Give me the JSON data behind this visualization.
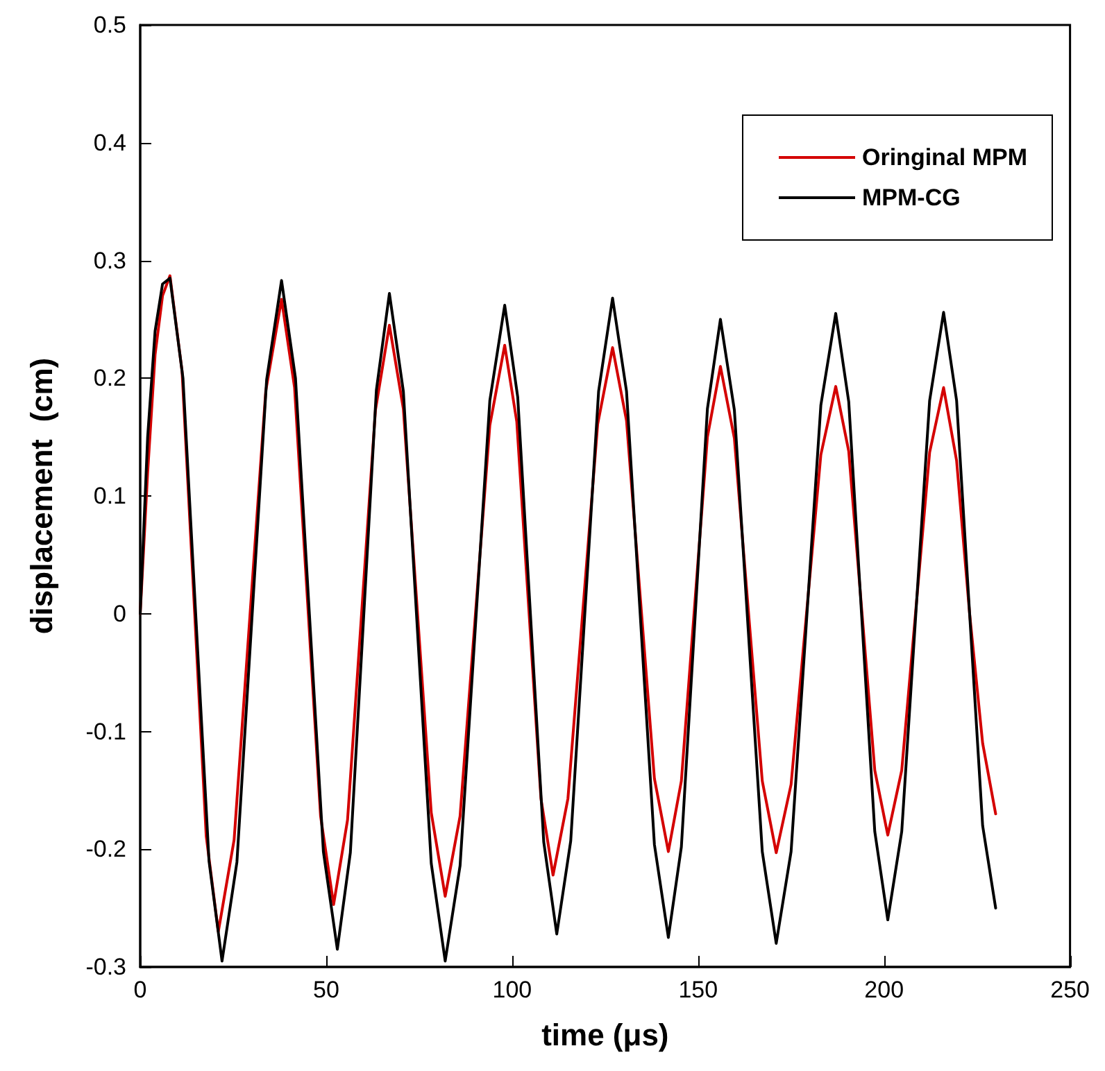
{
  "chart_data": {
    "type": "line",
    "xlabel": "time (μs)",
    "ylabel": "displacement  (cm)",
    "xlim": [
      0,
      250
    ],
    "xticks": [
      0,
      50,
      100,
      150,
      200,
      250
    ],
    "ylim": [
      -0.3,
      0.5
    ],
    "yticks": [
      -0.3,
      -0.2,
      -0.1,
      0,
      0.1,
      0.2,
      0.3,
      0.4,
      0.5
    ],
    "grid": false,
    "legend": "top right",
    "marker": "none",
    "line_style": "solid",
    "series": [
      {
        "name": "Oringinal MPM",
        "color": "#d40000",
        "x": [
          0,
          2,
          4,
          6,
          8,
          11.25,
          14.5,
          17.75,
          21,
          25.25,
          29.5,
          33.75,
          38,
          41.5,
          45,
          48.5,
          52,
          55.75,
          59.5,
          63.25,
          67,
          70.75,
          74.5,
          78.25,
          82,
          86,
          90,
          94,
          98,
          101.25,
          104.5,
          107.75,
          111,
          115,
          119,
          123,
          127,
          130.75,
          134.5,
          138.25,
          142,
          145.5,
          149,
          152.5,
          156,
          159.75,
          163.5,
          167.25,
          171,
          175,
          179,
          183,
          187,
          190.5,
          194,
          197.5,
          201,
          204.75,
          208.5,
          212.25,
          216,
          219.5,
          223,
          226.5,
          230
        ],
        "values": [
          0,
          0.12,
          0.22,
          0.27,
          0.287,
          0.206,
          0.009,
          -0.189,
          -0.27,
          -0.192,
          -0.002,
          0.189,
          0.267,
          0.192,
          0.01,
          -0.172,
          -0.247,
          -0.175,
          -0.001,
          0.173,
          0.245,
          0.174,
          0.003,
          -0.169,
          -0.24,
          -0.172,
          -0.006,
          0.16,
          0.228,
          0.163,
          0.003,
          -0.157,
          -0.222,
          -0.157,
          0.002,
          0.161,
          0.226,
          0.164,
          0.012,
          -0.14,
          -0.202,
          -0.142,
          0.004,
          0.15,
          0.21,
          0.149,
          0.003,
          -0.142,
          -0.203,
          -0.145,
          -0.005,
          0.135,
          0.193,
          0.138,
          0.003,
          -0.133,
          -0.188,
          -0.133,
          0.002,
          0.137,
          0.192,
          0.13,
          0,
          -0.11,
          -0.17
        ]
      },
      {
        "name": "MPM-CG",
        "color": "#000000",
        "x": [
          0,
          2,
          4,
          6,
          8,
          11.5,
          15,
          18.5,
          22,
          26,
          30,
          34,
          38,
          41.75,
          45.5,
          49.25,
          53,
          56.5,
          60,
          63.5,
          67,
          70.75,
          74.5,
          78.25,
          82,
          86,
          90,
          94,
          98,
          101.5,
          105,
          108.5,
          112,
          115.75,
          119.5,
          123.25,
          127,
          130.75,
          134.5,
          138.25,
          142,
          145.5,
          149,
          152.5,
          156,
          159.75,
          163.5,
          167.25,
          171,
          175,
          179,
          183,
          187,
          190.5,
          194,
          197.5,
          201,
          204.75,
          208.5,
          212.25,
          216,
          219.5,
          223,
          226.5,
          230
        ],
        "values": [
          0,
          0.15,
          0.24,
          0.28,
          0.285,
          0.2,
          -0.005,
          -0.21,
          -0.295,
          -0.211,
          -0.006,
          0.199,
          0.283,
          0.2,
          -0.001,
          -0.202,
          -0.285,
          -0.203,
          -0.007,
          0.19,
          0.272,
          0.189,
          -0.012,
          -0.212,
          -0.295,
          -0.214,
          -0.017,
          0.181,
          0.262,
          0.184,
          -0.005,
          -0.194,
          -0.272,
          -0.193,
          -0.002,
          0.189,
          0.268,
          0.189,
          -0.004,
          -0.196,
          -0.275,
          -0.198,
          -0.013,
          0.174,
          0.25,
          0.173,
          -0.015,
          -0.202,
          -0.28,
          -0.202,
          -0.013,
          0.177,
          0.255,
          0.18,
          -0.003,
          -0.185,
          -0.26,
          -0.185,
          -0.002,
          0.181,
          0.256,
          0.181,
          0,
          -0.18,
          -0.25
        ]
      }
    ]
  }
}
